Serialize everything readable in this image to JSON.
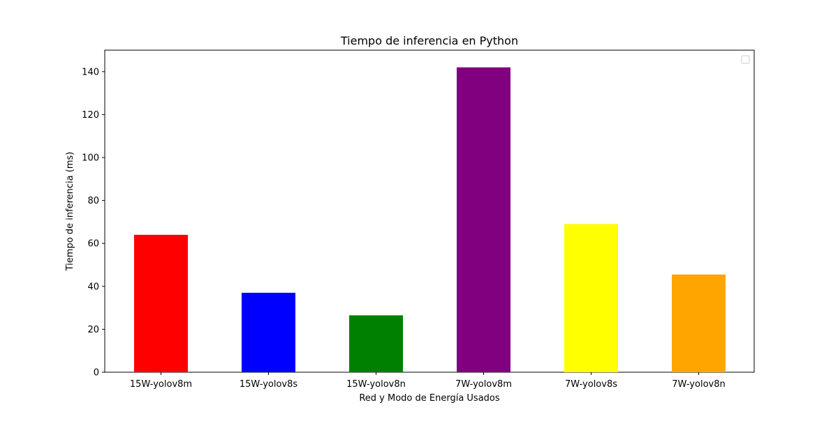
{
  "chart_data": {
    "type": "bar",
    "title": "Tiempo de inferencia en Python",
    "xlabel": "Red y Modo de Energía Usados",
    "ylabel": "Tiempo de inferencia (ms)",
    "categories": [
      "15W-yolov8m",
      "15W-yolov8s",
      "15W-yolov8n",
      "7W-yolov8m",
      "7W-yolov8s",
      "7W-yolov8n"
    ],
    "values": [
      64,
      37,
      26.5,
      142,
      69,
      45.5
    ],
    "colors": [
      "#ff0000",
      "#0000ff",
      "#008000",
      "#800080",
      "#ffff00",
      "#ffa500"
    ],
    "ylim": [
      0,
      150
    ],
    "yticks": [
      0,
      20,
      40,
      60,
      80,
      100,
      120,
      140
    ],
    "ytick_labels": [
      "0",
      "20",
      "40",
      "60",
      "80",
      "100",
      "120",
      "140"
    ],
    "grid": false,
    "legend": {
      "placement": "top-right",
      "entries": []
    }
  }
}
